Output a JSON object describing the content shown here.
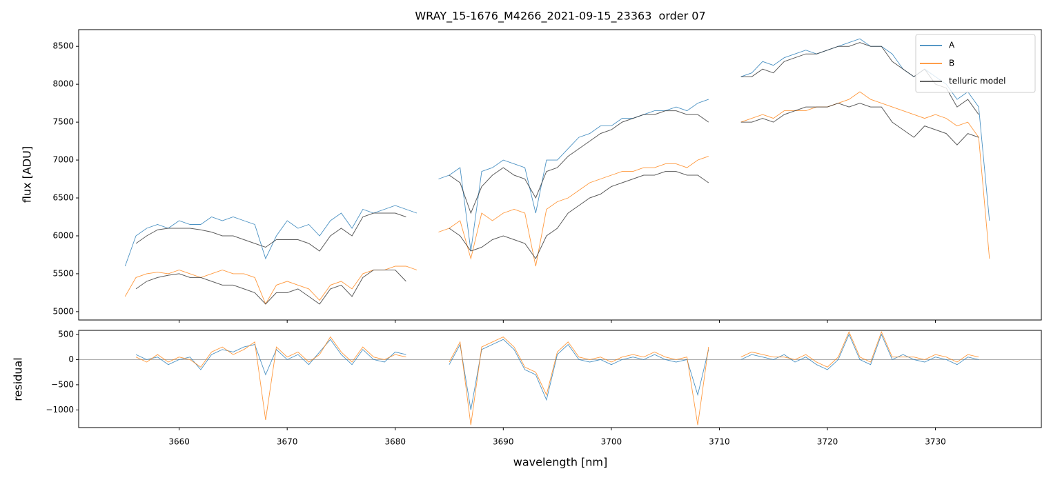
{
  "chart_data": [
    {
      "type": "line",
      "title": "WRAY_15-1676_M4266_2021-09-15_23363  order 07",
      "ylabel": "flux [ADU]",
      "x": [
        3655,
        3656,
        3657,
        3658,
        3659,
        3660,
        3661,
        3662,
        3663,
        3664,
        3665,
        3666,
        3667,
        3668,
        3669,
        3670,
        3671,
        3672,
        3673,
        3674,
        3675,
        3676,
        3677,
        3678,
        3679,
        3680,
        3681,
        3682,
        3683,
        3684,
        3685,
        3686,
        3687,
        3688,
        3689,
        3690,
        3691,
        3692,
        3693,
        3694,
        3695,
        3696,
        3697,
        3698,
        3699,
        3700,
        3701,
        3702,
        3703,
        3704,
        3705,
        3706,
        3707,
        3708,
        3709,
        3710,
        3711,
        3712,
        3713,
        3714,
        3715,
        3716,
        3717,
        3718,
        3719,
        3720,
        3721,
        3722,
        3723,
        3724,
        3725,
        3726,
        3727,
        3728,
        3729,
        3730,
        3731,
        3732,
        3733,
        3734,
        3735
      ],
      "series": [
        {
          "name": "A",
          "color": "#1f77b4",
          "values": [
            5600,
            6000,
            6100,
            6150,
            6100,
            6200,
            6150,
            6150,
            6250,
            6200,
            6250,
            6200,
            6150,
            5700,
            6000,
            6200,
            6100,
            6150,
            6000,
            6200,
            6300,
            6100,
            6350,
            6300,
            6350,
            6400,
            6350,
            6300,
            null,
            6750,
            6800,
            6900,
            5800,
            6850,
            6900,
            7000,
            6950,
            6900,
            6300,
            7000,
            7000,
            7150,
            7300,
            7350,
            7450,
            7450,
            7550,
            7550,
            7600,
            7650,
            7650,
            7700,
            7650,
            7750,
            7800,
            null,
            null,
            8100,
            8150,
            8300,
            8250,
            8350,
            8400,
            8450,
            8400,
            8450,
            8500,
            8550,
            8600,
            8500,
            8500,
            8400,
            8200,
            8100,
            8200,
            8100,
            8000,
            7800,
            7900,
            7700,
            6200
          ]
        },
        {
          "name": "B",
          "color": "#ff7f0e",
          "values": [
            5200,
            5450,
            5500,
            5520,
            5500,
            5550,
            5500,
            5450,
            5500,
            5550,
            5500,
            5500,
            5450,
            5100,
            5350,
            5400,
            5350,
            5300,
            5150,
            5350,
            5400,
            5300,
            5500,
            5550,
            5550,
            5600,
            5600,
            5550,
            null,
            6050,
            6100,
            6200,
            5700,
            6300,
            6200,
            6300,
            6350,
            6300,
            5600,
            6350,
            6450,
            6500,
            6600,
            6700,
            6750,
            6800,
            6850,
            6850,
            6900,
            6900,
            6950,
            6950,
            6900,
            7000,
            7050,
            null,
            null,
            7500,
            7550,
            7600,
            7550,
            7650,
            7650,
            7650,
            7700,
            7700,
            7750,
            7800,
            7900,
            7800,
            7750,
            7700,
            7650,
            7600,
            7550,
            7600,
            7550,
            7450,
            7500,
            7300,
            5700
          ]
        },
        {
          "name": "telluric model",
          "color": "#333333",
          "values": [
            null,
            5900,
            6000,
            6080,
            6100,
            6100,
            6100,
            6080,
            6050,
            6000,
            6000,
            5950,
            5900,
            5850,
            5950,
            5950,
            5950,
            5900,
            5800,
            6000,
            6100,
            6000,
            6250,
            6300,
            6300,
            6300,
            6250,
            null,
            null,
            null,
            6800,
            6700,
            6300,
            6650,
            6800,
            6900,
            6800,
            6750,
            6500,
            6850,
            6900,
            7050,
            7150,
            7250,
            7350,
            7400,
            7500,
            7550,
            7600,
            7600,
            7650,
            7650,
            7600,
            7600,
            7500,
            null,
            null,
            8100,
            8100,
            8200,
            8150,
            8300,
            8350,
            8400,
            8400,
            8450,
            8500,
            8500,
            8550,
            8500,
            8500,
            8300,
            8200,
            8100,
            8200,
            8000,
            7950,
            7700,
            7800,
            7600,
            null
          ]
        },
        {
          "color": "#333333",
          "values": [
            null,
            5300,
            5400,
            5450,
            5480,
            5500,
            5450,
            5450,
            5400,
            5350,
            5350,
            5300,
            5250,
            5100,
            5250,
            5250,
            5300,
            5200,
            5100,
            5300,
            5350,
            5200,
            5450,
            5550,
            5550,
            5550,
            5400,
            null,
            null,
            null,
            6100,
            6000,
            5800,
            5850,
            5950,
            6000,
            5950,
            5900,
            5700,
            6000,
            6100,
            6300,
            6400,
            6500,
            6550,
            6650,
            6700,
            6750,
            6800,
            6800,
            6850,
            6850,
            6800,
            6800,
            6700,
            null,
            null,
            7500,
            7500,
            7550,
            7500,
            7600,
            7650,
            7700,
            7700,
            7700,
            7750,
            7700,
            7750,
            7700,
            7700,
            7500,
            7400,
            7300,
            7450,
            7400,
            7350,
            7200,
            7350,
            7300,
            null
          ]
        }
      ],
      "xlim": [
        3650.7,
        3739.8
      ],
      "ylim": [
        4890,
        8720
      ],
      "yticks": [
        5000,
        5500,
        6000,
        6500,
        7000,
        7500,
        8000,
        8500
      ],
      "legend": "upper right"
    },
    {
      "type": "line",
      "xlabel": "wavelength [nm]",
      "ylabel": "residual",
      "x": [
        3655,
        3656,
        3657,
        3658,
        3659,
        3660,
        3661,
        3662,
        3663,
        3664,
        3665,
        3666,
        3667,
        3668,
        3669,
        3670,
        3671,
        3672,
        3673,
        3674,
        3675,
        3676,
        3677,
        3678,
        3679,
        3680,
        3681,
        3682,
        3683,
        3684,
        3685,
        3686,
        3687,
        3688,
        3689,
        3690,
        3691,
        3692,
        3693,
        3694,
        3695,
        3696,
        3697,
        3698,
        3699,
        3700,
        3701,
        3702,
        3703,
        3704,
        3705,
        3706,
        3707,
        3708,
        3709,
        3710,
        3711,
        3712,
        3713,
        3714,
        3715,
        3716,
        3717,
        3718,
        3719,
        3720,
        3721,
        3722,
        3723,
        3724,
        3725,
        3726,
        3727,
        3728,
        3729,
        3730,
        3731,
        3732,
        3733,
        3734,
        3735
      ],
      "series": [
        {
          "color": "#1f77b4",
          "values": [
            null,
            100,
            0,
            50,
            -100,
            0,
            50,
            -200,
            100,
            200,
            150,
            250,
            300,
            -300,
            200,
            0,
            100,
            -100,
            150,
            400,
            100,
            -100,
            200,
            0,
            -50,
            150,
            100,
            null,
            null,
            null,
            -100,
            300,
            -1000,
            200,
            300,
            400,
            200,
            -200,
            -300,
            -800,
            100,
            300,
            0,
            -50,
            0,
            -100,
            0,
            50,
            0,
            100,
            0,
            -50,
            0,
            -700,
            200,
            null,
            null,
            0,
            100,
            50,
            0,
            100,
            -50,
            50,
            -100,
            -200,
            0,
            500,
            0,
            -100,
            500,
            0,
            100,
            0,
            -50,
            50,
            0,
            -100,
            50,
            0,
            null
          ]
        },
        {
          "color": "#ff7f0e",
          "values": [
            null,
            50,
            -50,
            100,
            -50,
            50,
            0,
            -150,
            150,
            250,
            100,
            200,
            350,
            -1200,
            250,
            50,
            150,
            -50,
            100,
            450,
            150,
            -50,
            250,
            50,
            0,
            100,
            50,
            null,
            null,
            null,
            -50,
            350,
            -1300,
            250,
            350,
            450,
            250,
            -150,
            -250,
            -700,
            150,
            350,
            50,
            0,
            50,
            -50,
            50,
            100,
            50,
            150,
            50,
            0,
            50,
            -1300,
            250,
            null,
            null,
            50,
            150,
            100,
            50,
            50,
            0,
            100,
            -50,
            -150,
            50,
            550,
            50,
            -50,
            550,
            50,
            50,
            50,
            0,
            100,
            50,
            -50,
            100,
            50,
            null
          ]
        }
      ],
      "xlim": [
        3650.7,
        3739.8
      ],
      "ylim": [
        -1350,
        580
      ],
      "xticks": [
        3660,
        3670,
        3680,
        3690,
        3700,
        3710,
        3720,
        3730
      ],
      "yticks": [
        {
          "value": -1000,
          "label": "−1000"
        },
        {
          "value": -500,
          "label": "−500"
        },
        0,
        500
      ],
      "hline": 0
    }
  ]
}
